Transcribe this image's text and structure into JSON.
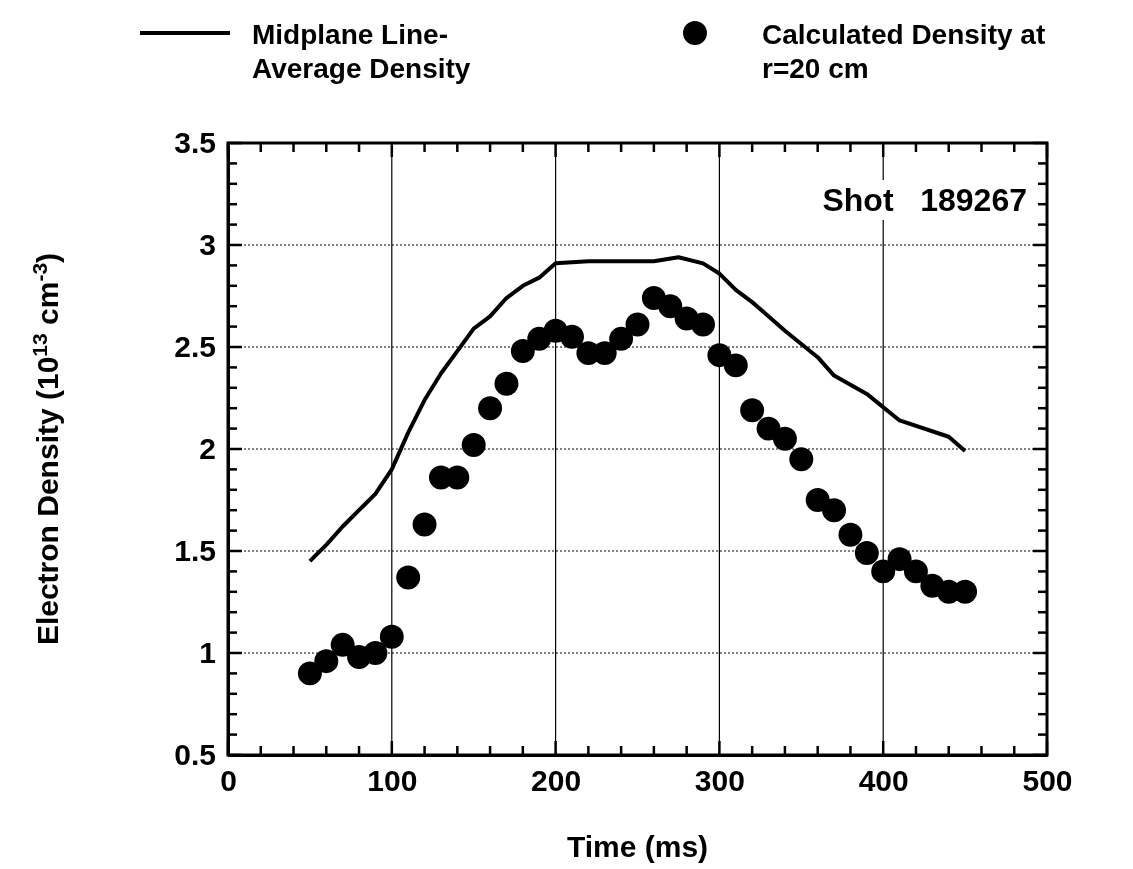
{
  "chart_data": {
    "type": "line",
    "xlabel": "Time (ms)",
    "ylabel": "Electron Density (10$^{13}$ cm$^{-3}$)",
    "annotations": [
      "Shot   189267"
    ],
    "xlim": [
      0,
      500
    ],
    "ylim": [
      0.5,
      3.5
    ],
    "xticks": [
      0,
      {
        "value": 20,
        "label": null
      },
      {
        "value": 40,
        "label": null
      },
      {
        "value": 60,
        "label": null
      },
      {
        "value": 80,
        "label": null
      },
      100,
      {
        "value": 120,
        "label": null
      },
      {
        "value": 140,
        "label": null
      },
      {
        "value": 160,
        "label": null
      },
      {
        "value": 180,
        "label": null
      },
      200,
      {
        "value": 220,
        "label": null
      },
      {
        "value": 240,
        "label": null
      },
      {
        "value": 260,
        "label": null
      },
      {
        "value": 280,
        "label": null
      },
      300,
      {
        "value": 320,
        "label": null
      },
      {
        "value": 340,
        "label": null
      },
      {
        "value": 360,
        "label": null
      },
      {
        "value": 380,
        "label": null
      },
      400,
      {
        "value": 420,
        "label": null
      },
      {
        "value": 440,
        "label": null
      },
      {
        "value": 460,
        "label": null
      },
      {
        "value": 480,
        "label": null
      },
      500
    ],
    "yticks": [
      0.5,
      {
        "value": 0.6,
        "label": null
      },
      {
        "value": 0.7,
        "label": null
      },
      {
        "value": 0.8,
        "label": null
      },
      {
        "value": 0.9,
        "label": null
      },
      1,
      {
        "value": 1.1,
        "label": null
      },
      {
        "value": 1.2,
        "label": null
      },
      {
        "value": 1.3,
        "label": null
      },
      {
        "value": 1.4,
        "label": null
      },
      1.5,
      {
        "value": 1.6,
        "label": null
      },
      {
        "value": 1.7,
        "label": null
      },
      {
        "value": 1.8,
        "label": null
      },
      {
        "value": 1.9,
        "label": null
      },
      2,
      {
        "value": 2.1,
        "label": null
      },
      {
        "value": 2.2,
        "label": null
      },
      {
        "value": 2.3,
        "label": null
      },
      {
        "value": 2.4,
        "label": null
      },
      2.5,
      {
        "value": 2.6,
        "label": null
      },
      {
        "value": 2.7,
        "label": null
      },
      {
        "value": 2.8,
        "label": null
      },
      {
        "value": 2.9,
        "label": null
      },
      3,
      {
        "value": 3.1,
        "label": null
      },
      {
        "value": 3.2,
        "label": null
      },
      {
        "value": 3.3,
        "label": null
      },
      {
        "value": 3.4,
        "label": null
      },
      3.5
    ],
    "grid": true,
    "legend": "top",
    "series": [
      {
        "name": "Midplane Line-Average Density",
        "type": "line",
        "color": "#000000",
        "marker": "none",
        "line_style": "solid",
        "x": [
          50,
          60,
          70,
          80,
          90,
          100,
          110,
          120,
          130,
          140,
          150,
          160,
          170,
          180,
          190,
          200,
          220,
          240,
          260,
          275,
          290,
          300,
          310,
          320,
          340,
          360,
          370,
          390,
          410,
          440,
          450
        ],
        "values": [
          1.45,
          1.53,
          1.62,
          1.7,
          1.78,
          1.9,
          2.08,
          2.24,
          2.37,
          2.48,
          2.59,
          2.65,
          2.74,
          2.8,
          2.84,
          2.91,
          2.92,
          2.92,
          2.92,
          2.94,
          2.91,
          2.86,
          2.78,
          2.72,
          2.58,
          2.45,
          2.36,
          2.27,
          2.14,
          2.06,
          1.99
        ]
      },
      {
        "name": "Calculated Density at r=20 cm",
        "type": "scatter",
        "color": "#000000",
        "marker": "circle",
        "x": [
          50,
          60,
          70,
          80,
          90,
          100,
          110,
          120,
          130,
          140,
          150,
          160,
          170,
          180,
          190,
          200,
          210,
          220,
          230,
          240,
          250,
          260,
          270,
          280,
          290,
          300,
          310,
          320,
          330,
          340,
          350,
          360,
          370,
          380,
          390,
          400,
          410,
          420,
          430,
          440,
          450
        ],
        "values": [
          0.9,
          0.96,
          1.04,
          0.98,
          1.0,
          1.08,
          1.37,
          1.63,
          1.86,
          1.86,
          2.02,
          2.2,
          2.32,
          2.48,
          2.54,
          2.58,
          2.55,
          2.47,
          2.47,
          2.54,
          2.61,
          2.74,
          2.7,
          2.64,
          2.61,
          2.46,
          2.41,
          2.19,
          2.1,
          2.05,
          1.95,
          1.75,
          1.7,
          1.58,
          1.49,
          1.4,
          1.46,
          1.4,
          1.33,
          1.3,
          1.3
        ]
      }
    ]
  }
}
